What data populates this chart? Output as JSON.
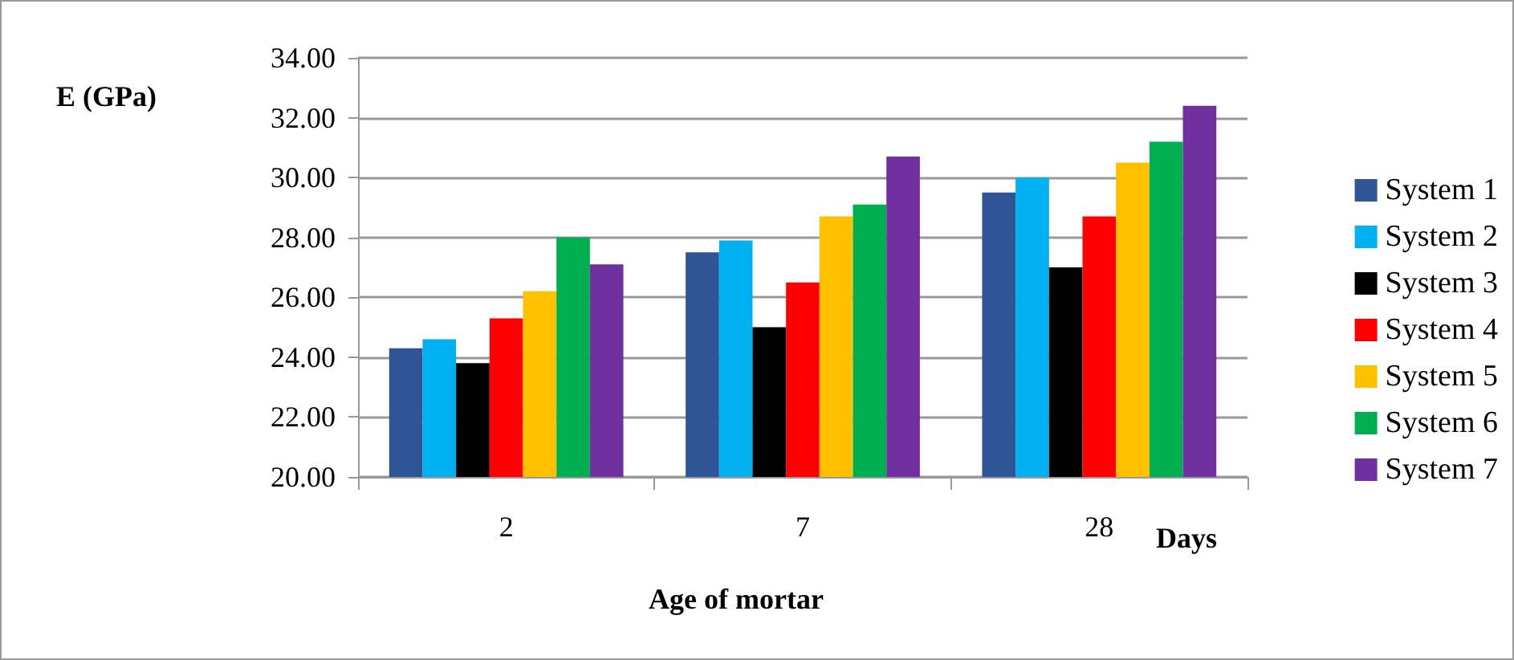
{
  "chart_data": {
    "type": "bar",
    "ylabel": "E (GPa)",
    "xlabel": "Age of mortar",
    "annotations": [
      "Days"
    ],
    "categories": [
      "2",
      "7",
      "28"
    ],
    "series": [
      {
        "name": "System 1",
        "color": "#2f5597",
        "values": [
          24.3,
          27.5,
          29.5
        ]
      },
      {
        "name": "System 2",
        "color": "#00b0f0",
        "values": [
          24.6,
          27.9,
          30.0
        ]
      },
      {
        "name": "System 3",
        "color": "#000000",
        "values": [
          23.8,
          25.0,
          27.0
        ]
      },
      {
        "name": "System 4",
        "color": "#ff0000",
        "values": [
          25.3,
          26.5,
          28.7
        ]
      },
      {
        "name": "System 5",
        "color": "#ffc000",
        "values": [
          26.2,
          28.7,
          30.5
        ]
      },
      {
        "name": "System 6",
        "color": "#00b050",
        "values": [
          28.0,
          29.1,
          31.2
        ]
      },
      {
        "name": "System 7",
        "color": "#7030a0",
        "values": [
          27.1,
          30.7,
          32.4
        ]
      }
    ],
    "ylim": [
      20,
      34
    ],
    "yticks": [
      {
        "value": 20,
        "label": "20.00"
      },
      {
        "value": 22,
        "label": "22.00"
      },
      {
        "value": 24,
        "label": "24.00"
      },
      {
        "value": 26,
        "label": "26.00"
      },
      {
        "value": 28,
        "label": "28.00"
      },
      {
        "value": 30,
        "label": "30.00"
      },
      {
        "value": 32,
        "label": "32.00"
      },
      {
        "value": 34,
        "label": "34.00"
      }
    ],
    "grid": "y",
    "legend": "right"
  }
}
